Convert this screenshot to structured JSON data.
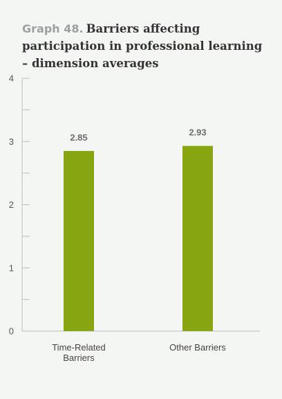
{
  "header": {
    "graph_label": "Graph 48.",
    "title": "Barriers affecting participation in professional learning – dimension averages"
  },
  "chart_data": {
    "type": "bar",
    "categories": [
      "Time-Related Barriers",
      "Other Barriers"
    ],
    "category_lines": [
      [
        "Time-Related",
        "Barriers"
      ],
      [
        "Other Barriers"
      ]
    ],
    "values": [
      2.85,
      2.93
    ],
    "data_labels": [
      "2.85",
      "2.93"
    ],
    "ylim": [
      0,
      4
    ],
    "yticks": [
      0,
      1,
      2,
      3,
      4
    ],
    "title": "Barriers affecting participation in professional learning – dimension averages",
    "xlabel": "",
    "ylabel": "",
    "grid": false,
    "bar_color": "#86a511",
    "axis_color": "#b9bdb9"
  }
}
